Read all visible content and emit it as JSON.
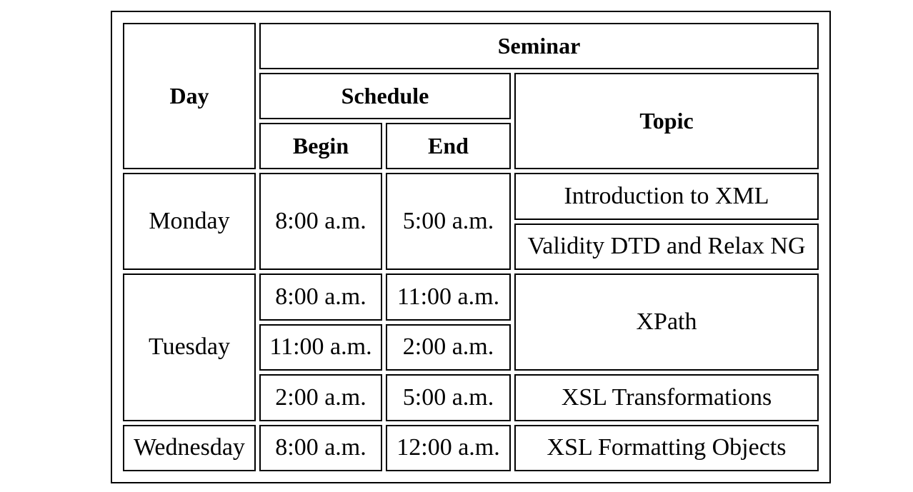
{
  "headers": {
    "day": "Day",
    "seminar": "Seminar",
    "schedule": "Schedule",
    "topic": "Topic",
    "begin": "Begin",
    "end": "End"
  },
  "rows": {
    "monday": {
      "day": "Monday",
      "begin": "8:00 a.m.",
      "end": "5:00 a.m.",
      "topics": [
        "Introduction to XML",
        "Validity DTD and Relax NG"
      ]
    },
    "tuesday": {
      "day": "Tuesday",
      "slots": [
        {
          "begin": "8:00 a.m.",
          "end": "11:00 a.m."
        },
        {
          "begin": "11:00 a.m.",
          "end": "2:00 a.m."
        },
        {
          "begin": "2:00 a.m.",
          "end": "5:00 a.m."
        }
      ],
      "topics": [
        "XPath",
        "XSL Transformations"
      ]
    },
    "wednesday": {
      "day": "Wednesday",
      "begin": "8:00 a.m.",
      "end": "12:00 a.m.",
      "topic": "XSL Formatting Objects"
    }
  }
}
